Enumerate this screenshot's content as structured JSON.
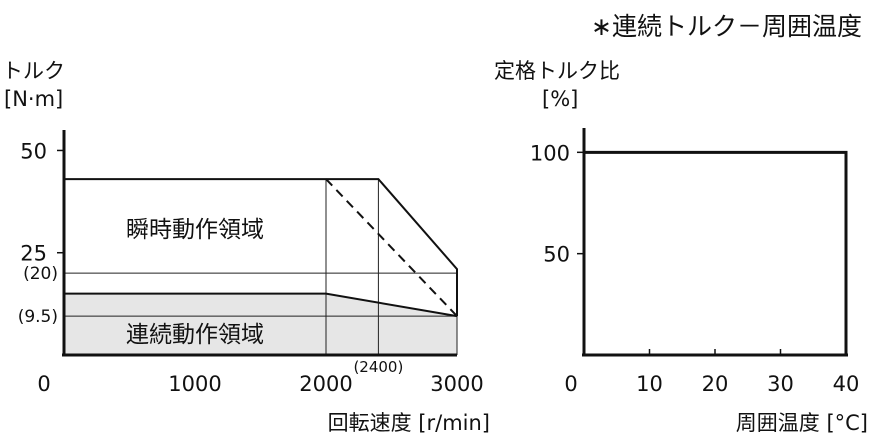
{
  "header_note": "∗連続トルク－周囲温度",
  "chart_data": [
    {
      "type": "area",
      "ylabel": "トルク",
      "yunit": "[N·m]",
      "xlabel": "回転速度 [r/min]",
      "ylim": [
        0,
        55
      ],
      "xlim": [
        0,
        3000
      ],
      "yticks": [
        {
          "value": 50,
          "label": "50"
        },
        {
          "value": 25,
          "label": "25"
        },
        {
          "value": 20,
          "label": "(20)"
        },
        {
          "value": 9.5,
          "label": "(9.5)"
        }
      ],
      "xticks": [
        {
          "value": 0,
          "label": "0"
        },
        {
          "value": 1000,
          "label": "1000"
        },
        {
          "value": 2000,
          "label": "2000"
        },
        {
          "value": 3000,
          "label": "3000"
        }
      ],
      "xannotation": {
        "value": 2400,
        "label": "(2400)"
      },
      "series": [
        {
          "name": "瞬時動作領域",
          "x": [
            0,
            2000,
            2400,
            3000,
            3000
          ],
          "values": [
            43,
            43,
            43,
            21,
            9.5
          ]
        },
        {
          "name": "連続動作領域",
          "x": [
            0,
            2000,
            3000
          ],
          "values": [
            15,
            15,
            9.5
          ]
        }
      ],
      "dashed": {
        "x": [
          2000,
          3000
        ],
        "values": [
          43,
          9.5
        ]
      },
      "vlines": [
        2000,
        2400,
        3000
      ],
      "hlines": [
        20,
        9.5
      ]
    },
    {
      "type": "line",
      "ylabel": "定格トルク比",
      "yunit": "[%]",
      "xlabel": "周囲温度 [°C]",
      "ylim": [
        0,
        112
      ],
      "xlim": [
        0,
        40
      ],
      "yticks": [
        {
          "value": 100,
          "label": "100"
        },
        {
          "value": 50,
          "label": "50"
        }
      ],
      "xticks": [
        {
          "value": 0,
          "label": "0"
        },
        {
          "value": 10,
          "label": "10"
        },
        {
          "value": 20,
          "label": "20"
        },
        {
          "value": 30,
          "label": "30"
        },
        {
          "value": 40,
          "label": "40"
        }
      ],
      "series": [
        {
          "x": [
            0,
            40,
            40
          ],
          "values": [
            100,
            100,
            0
          ]
        }
      ]
    }
  ]
}
